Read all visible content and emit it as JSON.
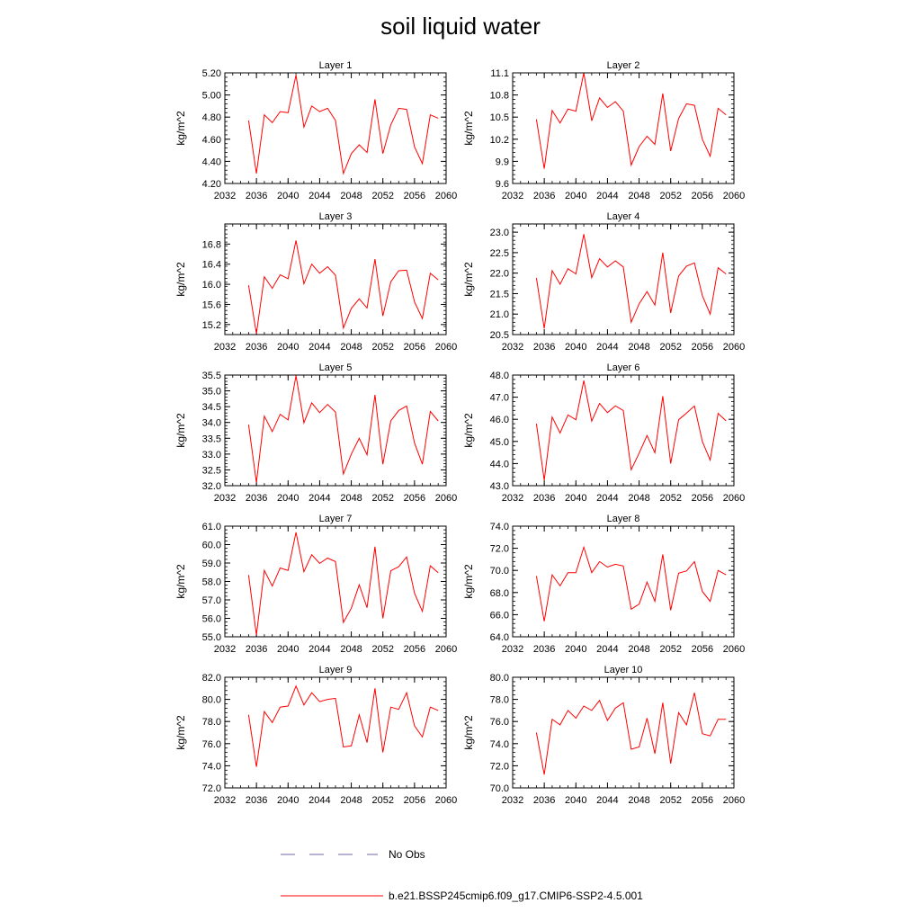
{
  "title": "soil liquid water",
  "legend": {
    "obs_label": "No Obs",
    "model_label": "b.e21.BSSP245cmip6.f09_g17.CMIP6-SSP2-4.5.001",
    "obs_color": "#6a6ab0",
    "model_color": "#ff0000"
  },
  "chart_data": [
    {
      "type": "line",
      "title": "Layer 1",
      "ylabel": "kg/m^2",
      "x": [
        2035,
        2036,
        2037,
        2038,
        2039,
        2040,
        2041,
        2042,
        2043,
        2044,
        2045,
        2046,
        2047,
        2048,
        2049,
        2050,
        2051,
        2052,
        2053,
        2054,
        2055,
        2056,
        2057,
        2058,
        2059
      ],
      "xlim": [
        2032,
        2060
      ],
      "xticks": [
        "2032",
        "2036",
        "2040",
        "2044",
        "2048",
        "2052",
        "2056",
        "2060"
      ],
      "ylim": [
        4.2,
        5.2
      ],
      "yticks": [
        "4.20",
        "4.40",
        "4.60",
        "4.80",
        "5.00",
        "5.20"
      ],
      "series": [
        {
          "values": [
            4.77,
            4.29,
            4.82,
            4.75,
            4.85,
            4.84,
            5.18,
            4.71,
            4.9,
            4.85,
            4.88,
            4.77,
            4.29,
            4.47,
            4.55,
            4.48,
            4.96,
            4.47,
            4.73,
            4.88,
            4.87,
            4.53,
            4.38,
            4.82,
            4.79
          ]
        }
      ]
    },
    {
      "type": "line",
      "title": "Layer 2",
      "ylabel": "kg/m^2",
      "x": [
        2035,
        2036,
        2037,
        2038,
        2039,
        2040,
        2041,
        2042,
        2043,
        2044,
        2045,
        2046,
        2047,
        2048,
        2049,
        2050,
        2051,
        2052,
        2053,
        2054,
        2055,
        2056,
        2057,
        2058,
        2059
      ],
      "xlim": [
        2032,
        2060
      ],
      "xticks": [
        "2032",
        "2036",
        "2040",
        "2044",
        "2048",
        "2052",
        "2056",
        "2060"
      ],
      "ylim": [
        9.6,
        11.1
      ],
      "yticks": [
        "9.6",
        "9.9",
        "10.2",
        "10.5",
        "10.8",
        "11.1"
      ],
      "series": [
        {
          "values": [
            10.47,
            9.8,
            10.59,
            10.42,
            10.61,
            10.58,
            11.1,
            10.45,
            10.76,
            10.63,
            10.71,
            10.58,
            9.85,
            10.1,
            10.24,
            10.13,
            10.82,
            10.04,
            10.48,
            10.68,
            10.66,
            10.2,
            9.97,
            10.62,
            10.53
          ]
        }
      ]
    },
    {
      "type": "line",
      "title": "Layer 3",
      "ylabel": "kg/m^2",
      "x": [
        2035,
        2036,
        2037,
        2038,
        2039,
        2040,
        2041,
        2042,
        2043,
        2044,
        2045,
        2046,
        2047,
        2048,
        2049,
        2050,
        2051,
        2052,
        2053,
        2054,
        2055,
        2056,
        2057,
        2058,
        2059
      ],
      "xlim": [
        2032,
        2060
      ],
      "xticks": [
        "2032",
        "2036",
        "2040",
        "2044",
        "2048",
        "2052",
        "2056",
        "2060"
      ],
      "ylim": [
        15.0,
        17.2
      ],
      "yticks": [
        "15.2",
        "15.6",
        "16.0",
        "16.4",
        "16.8"
      ],
      "series": [
        {
          "values": [
            15.98,
            15.02,
            16.15,
            15.92,
            16.19,
            16.11,
            16.87,
            16.01,
            16.4,
            16.22,
            16.35,
            16.18,
            15.13,
            15.52,
            15.71,
            15.53,
            16.5,
            15.37,
            16.05,
            16.27,
            16.28,
            15.65,
            15.32,
            16.22,
            16.09
          ]
        }
      ]
    },
    {
      "type": "line",
      "title": "Layer 4",
      "ylabel": "kg/m^2",
      "x": [
        2035,
        2036,
        2037,
        2038,
        2039,
        2040,
        2041,
        2042,
        2043,
        2044,
        2045,
        2046,
        2047,
        2048,
        2049,
        2050,
        2051,
        2052,
        2053,
        2054,
        2055,
        2056,
        2057,
        2058,
        2059
      ],
      "xlim": [
        2032,
        2060
      ],
      "xticks": [
        "2032",
        "2036",
        "2040",
        "2044",
        "2048",
        "2052",
        "2056",
        "2060"
      ],
      "ylim": [
        20.5,
        23.2
      ],
      "yticks": [
        "20.5",
        "21.0",
        "21.5",
        "22.0",
        "22.5",
        "23.0"
      ],
      "series": [
        {
          "values": [
            21.88,
            20.65,
            22.06,
            21.73,
            22.11,
            21.98,
            22.95,
            21.89,
            22.35,
            22.15,
            22.3,
            22.15,
            20.8,
            21.25,
            21.55,
            21.22,
            22.5,
            21.03,
            21.93,
            22.17,
            22.25,
            21.45,
            21.0,
            22.13,
            21.98
          ]
        }
      ]
    },
    {
      "type": "line",
      "title": "Layer 5",
      "ylabel": "kg/m^2",
      "x": [
        2035,
        2036,
        2037,
        2038,
        2039,
        2040,
        2041,
        2042,
        2043,
        2044,
        2045,
        2046,
        2047,
        2048,
        2049,
        2050,
        2051,
        2052,
        2053,
        2054,
        2055,
        2056,
        2057,
        2058,
        2059
      ],
      "xlim": [
        2032,
        2060
      ],
      "xticks": [
        "2032",
        "2036",
        "2040",
        "2044",
        "2048",
        "2052",
        "2056",
        "2060"
      ],
      "ylim": [
        32.0,
        35.5
      ],
      "yticks": [
        "32.0",
        "32.5",
        "33.0",
        "33.5",
        "34.0",
        "34.5",
        "35.0",
        "35.5"
      ],
      "series": [
        {
          "values": [
            33.93,
            32.1,
            34.2,
            33.71,
            34.26,
            34.08,
            35.48,
            33.99,
            34.62,
            34.31,
            34.57,
            34.33,
            32.37,
            33.0,
            33.5,
            32.98,
            34.87,
            32.68,
            34.05,
            34.38,
            34.52,
            33.35,
            32.68,
            34.35,
            34.05
          ]
        }
      ]
    },
    {
      "type": "line",
      "title": "Layer 6",
      "ylabel": "kg/m^2",
      "x": [
        2035,
        2036,
        2037,
        2038,
        2039,
        2040,
        2041,
        2042,
        2043,
        2044,
        2045,
        2046,
        2047,
        2048,
        2049,
        2050,
        2051,
        2052,
        2053,
        2054,
        2055,
        2056,
        2057,
        2058,
        2059
      ],
      "xlim": [
        2032,
        2060
      ],
      "xticks": [
        "2032",
        "2036",
        "2040",
        "2044",
        "2048",
        "2052",
        "2056",
        "2060"
      ],
      "ylim": [
        43.0,
        48.0
      ],
      "yticks": [
        "43.0",
        "44.0",
        "45.0",
        "46.0",
        "47.0",
        "48.0"
      ],
      "series": [
        {
          "values": [
            45.8,
            43.25,
            46.1,
            45.38,
            46.2,
            45.98,
            47.75,
            45.92,
            46.72,
            46.3,
            46.61,
            46.4,
            43.72,
            44.47,
            45.27,
            44.49,
            47.05,
            44.0,
            45.98,
            46.28,
            46.6,
            45.0,
            44.16,
            46.27,
            45.93
          ]
        }
      ]
    },
    {
      "type": "line",
      "title": "Layer 7",
      "ylabel": "kg/m^2",
      "x": [
        2035,
        2036,
        2037,
        2038,
        2039,
        2040,
        2041,
        2042,
        2043,
        2044,
        2045,
        2046,
        2047,
        2048,
        2049,
        2050,
        2051,
        2052,
        2053,
        2054,
        2055,
        2056,
        2057,
        2058,
        2059
      ],
      "xlim": [
        2032,
        2060
      ],
      "xticks": [
        "2032",
        "2036",
        "2040",
        "2044",
        "2048",
        "2052",
        "2056",
        "2060"
      ],
      "ylim": [
        55.0,
        61.0
      ],
      "yticks": [
        "55.0",
        "56.0",
        "57.0",
        "58.0",
        "59.0",
        "60.0",
        "61.0"
      ],
      "series": [
        {
          "values": [
            58.35,
            55.1,
            58.6,
            57.75,
            58.73,
            58.6,
            60.67,
            58.53,
            59.45,
            58.98,
            59.27,
            59.08,
            55.78,
            56.55,
            57.82,
            56.58,
            59.89,
            56.0,
            58.58,
            58.8,
            59.33,
            57.36,
            56.38,
            58.85,
            58.48
          ]
        }
      ]
    },
    {
      "type": "line",
      "title": "Layer 8",
      "ylabel": "kg/m^2",
      "x": [
        2035,
        2036,
        2037,
        2038,
        2039,
        2040,
        2041,
        2042,
        2043,
        2044,
        2045,
        2046,
        2047,
        2048,
        2049,
        2050,
        2051,
        2052,
        2053,
        2054,
        2055,
        2056,
        2057,
        2058,
        2059
      ],
      "xlim": [
        2032,
        2060
      ],
      "xticks": [
        "2032",
        "2036",
        "2040",
        "2044",
        "2048",
        "2052",
        "2056",
        "2060"
      ],
      "ylim": [
        64.0,
        74.0
      ],
      "yticks": [
        "64.0",
        "66.0",
        "68.0",
        "70.0",
        "72.0",
        "74.0"
      ],
      "series": [
        {
          "values": [
            69.5,
            65.4,
            69.6,
            68.6,
            69.8,
            69.8,
            72.1,
            69.8,
            70.8,
            70.3,
            70.55,
            70.4,
            66.5,
            66.95,
            68.95,
            67.2,
            71.45,
            66.4,
            69.75,
            69.95,
            70.8,
            68.1,
            67.2,
            70.0,
            69.6
          ]
        }
      ]
    },
    {
      "type": "line",
      "title": "Layer 9",
      "ylabel": "kg/m^2",
      "x": [
        2035,
        2036,
        2037,
        2038,
        2039,
        2040,
        2041,
        2042,
        2043,
        2044,
        2045,
        2046,
        2047,
        2048,
        2049,
        2050,
        2051,
        2052,
        2053,
        2054,
        2055,
        2056,
        2057,
        2058,
        2059
      ],
      "xlim": [
        2032,
        2060
      ],
      "xticks": [
        "2032",
        "2036",
        "2040",
        "2044",
        "2048",
        "2052",
        "2056",
        "2060"
      ],
      "ylim": [
        72.0,
        82.0
      ],
      "yticks": [
        "72.0",
        "74.0",
        "76.0",
        "78.0",
        "80.0",
        "82.0"
      ],
      "series": [
        {
          "values": [
            78.6,
            73.9,
            78.9,
            77.9,
            79.3,
            79.4,
            81.2,
            79.5,
            80.6,
            79.8,
            80.0,
            80.1,
            75.7,
            75.8,
            78.6,
            76.1,
            81.0,
            75.2,
            79.3,
            79.1,
            80.6,
            77.6,
            76.6,
            79.3,
            79.0
          ]
        }
      ]
    },
    {
      "type": "line",
      "title": "Layer 10",
      "ylabel": "kg/m^2",
      "x": [
        2035,
        2036,
        2037,
        2038,
        2039,
        2040,
        2041,
        2042,
        2043,
        2044,
        2045,
        2046,
        2047,
        2048,
        2049,
        2050,
        2051,
        2052,
        2053,
        2054,
        2055,
        2056,
        2057,
        2058,
        2059
      ],
      "xlim": [
        2032,
        2060
      ],
      "xticks": [
        "2032",
        "2036",
        "2040",
        "2044",
        "2048",
        "2052",
        "2056",
        "2060"
      ],
      "ylim": [
        70.0,
        80.0
      ],
      "yticks": [
        "70.0",
        "72.0",
        "74.0",
        "76.0",
        "78.0",
        "80.0"
      ],
      "series": [
        {
          "values": [
            75.0,
            71.2,
            76.2,
            75.7,
            77.0,
            76.3,
            77.4,
            77.0,
            77.9,
            76.1,
            77.2,
            77.7,
            73.5,
            73.7,
            76.3,
            73.1,
            77.7,
            72.2,
            76.8,
            75.7,
            78.6,
            74.9,
            74.7,
            76.2,
            76.2
          ]
        }
      ]
    }
  ]
}
